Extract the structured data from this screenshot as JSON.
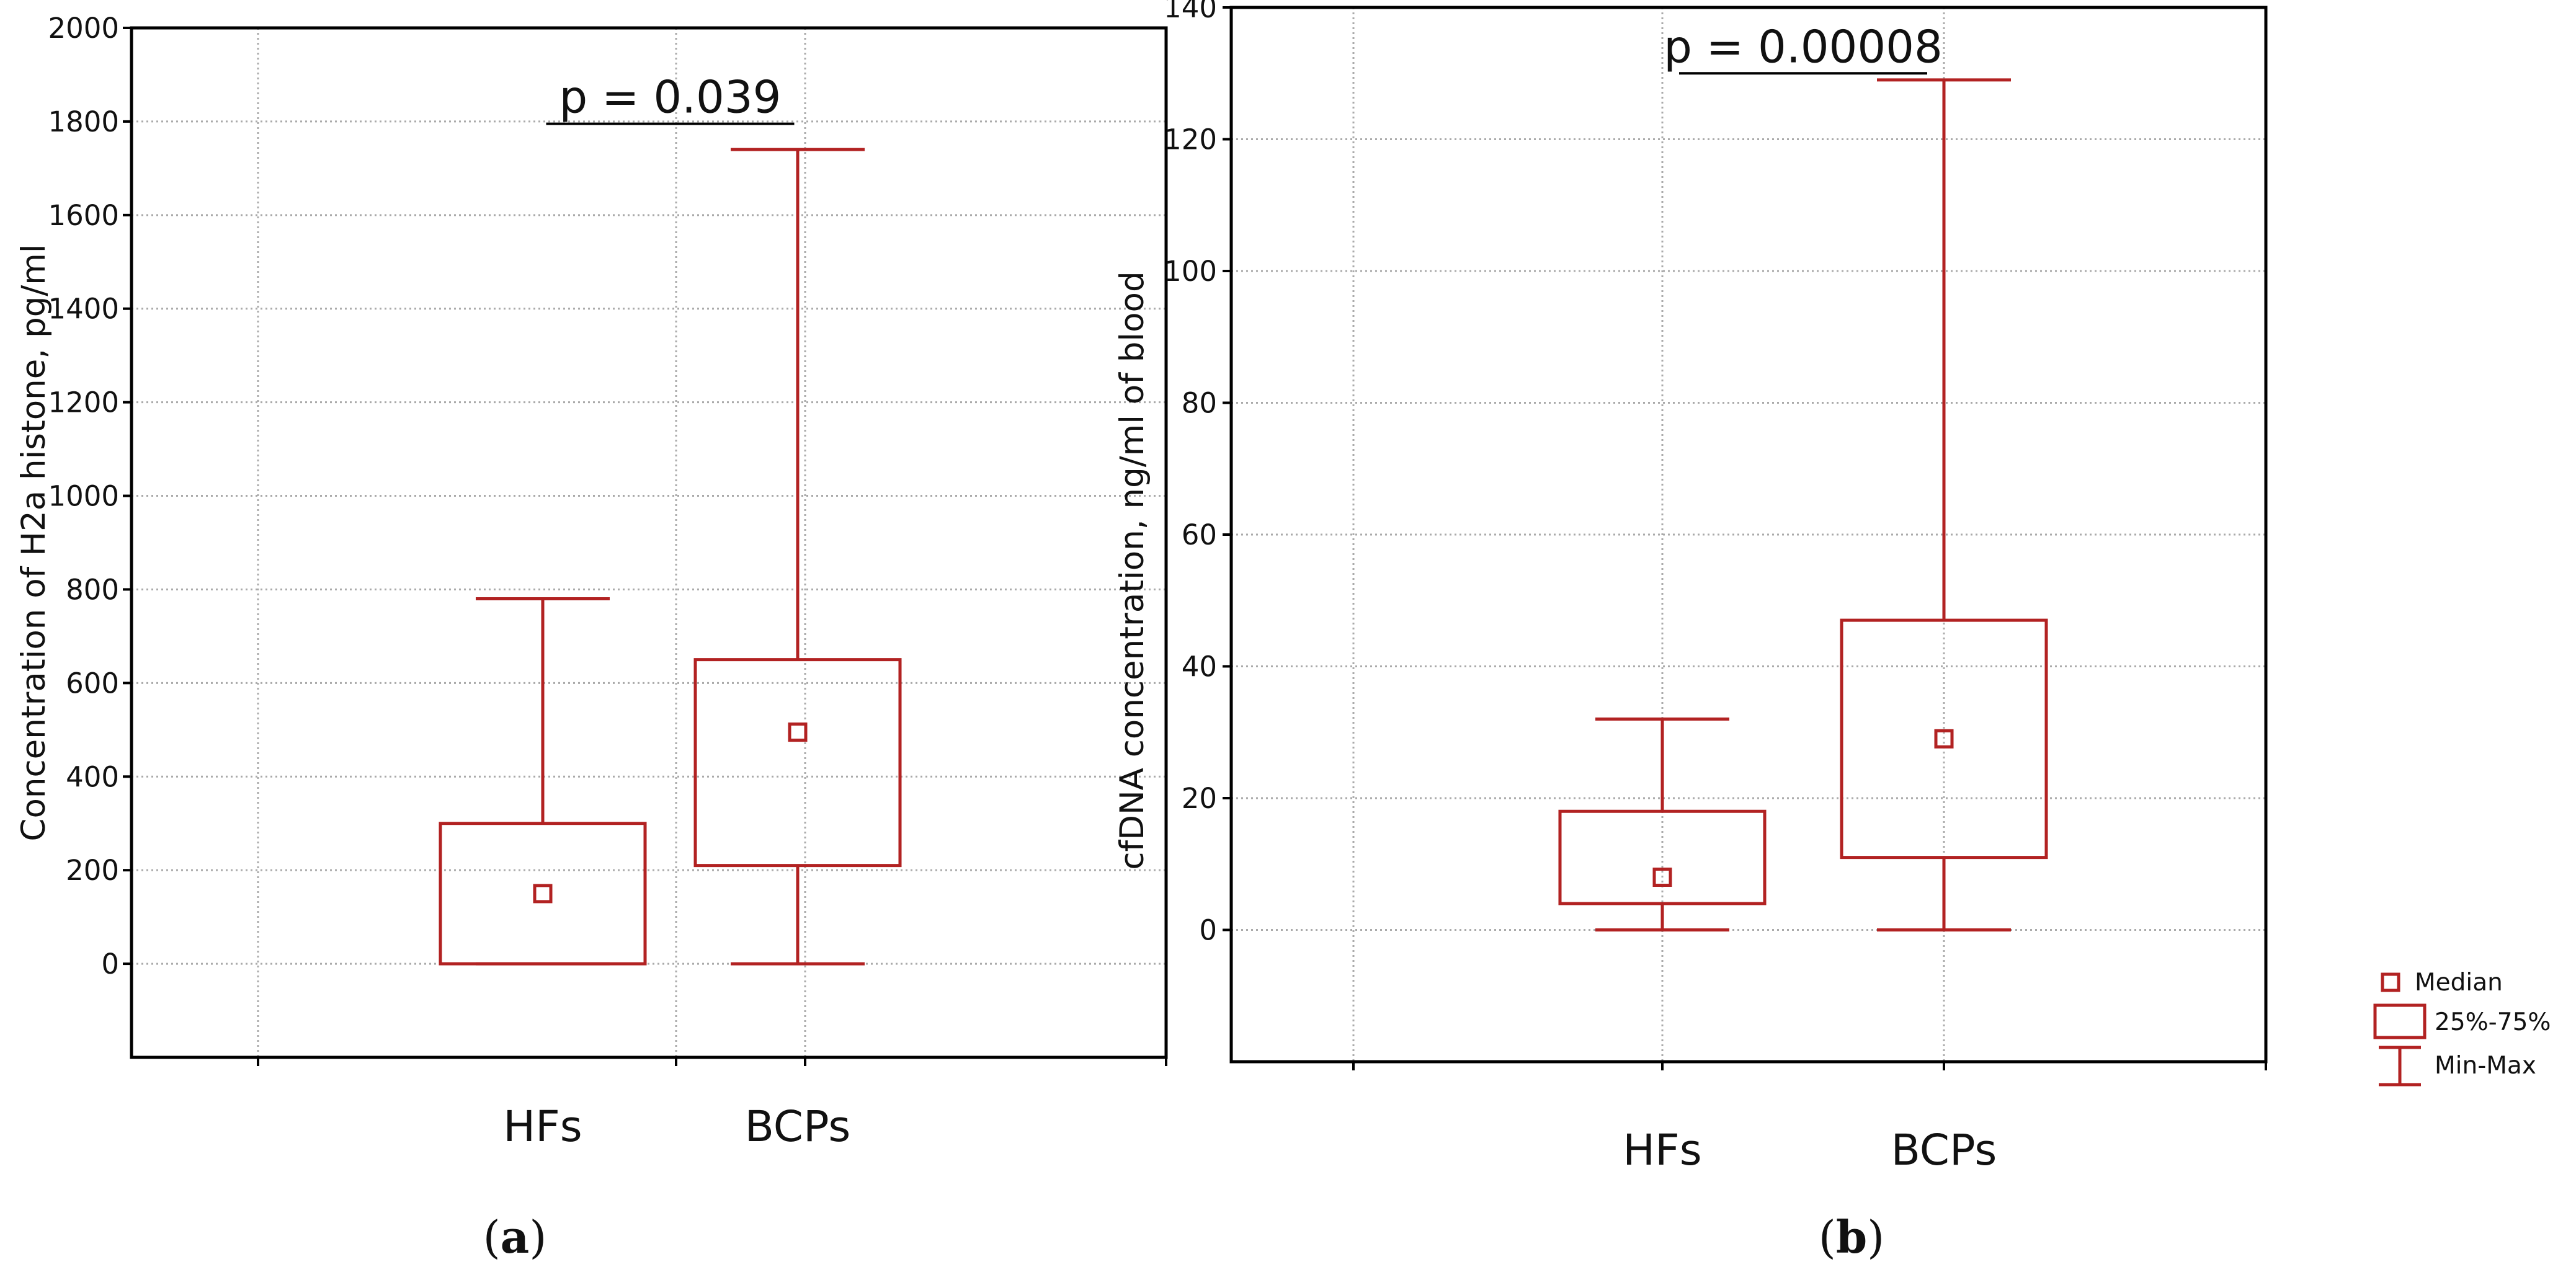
{
  "chart_data": [
    {
      "type": "box",
      "panel_label": "a",
      "ylabel": "Concentration of H2a histone, pg/ml",
      "ylim": [
        -200,
        2000
      ],
      "yticks": [
        0,
        200,
        400,
        600,
        800,
        1000,
        1200,
        1400,
        1600,
        1800,
        2000
      ],
      "categories": [
        "HFs",
        "BCPs"
      ],
      "boxes": [
        {
          "name": "HFs",
          "min": 0,
          "q1": 0,
          "median": 150,
          "q3": 300,
          "max": 780
        },
        {
          "name": "BCPs",
          "min": 0,
          "q1": 210,
          "median": 495,
          "q3": 650,
          "max": 1740
        }
      ],
      "significance": {
        "text": "p = 0.039",
        "value": 1795
      }
    },
    {
      "type": "box",
      "panel_label": "b",
      "ylabel": "cfDNA concentration, ng/ml of blood",
      "ylim": [
        -20,
        140
      ],
      "yticks": [
        0,
        20,
        40,
        60,
        80,
        100,
        120,
        140
      ],
      "categories": [
        "HFs",
        "BCPs"
      ],
      "boxes": [
        {
          "name": "HFs",
          "min": 0,
          "q1": 4,
          "median": 8,
          "q3": 18,
          "max": 32
        },
        {
          "name": "BCPs",
          "min": 0,
          "q1": 11,
          "median": 29,
          "q3": 47,
          "max": 129
        }
      ],
      "significance": {
        "text": "p = 0.00008",
        "value": 130
      }
    }
  ],
  "legend": {
    "entries": [
      "Median",
      "25%-75%",
      "Min-Max"
    ]
  },
  "colors": {
    "box": "#b22222",
    "grid": "#aaaaaa",
    "axis": "#000000"
  }
}
